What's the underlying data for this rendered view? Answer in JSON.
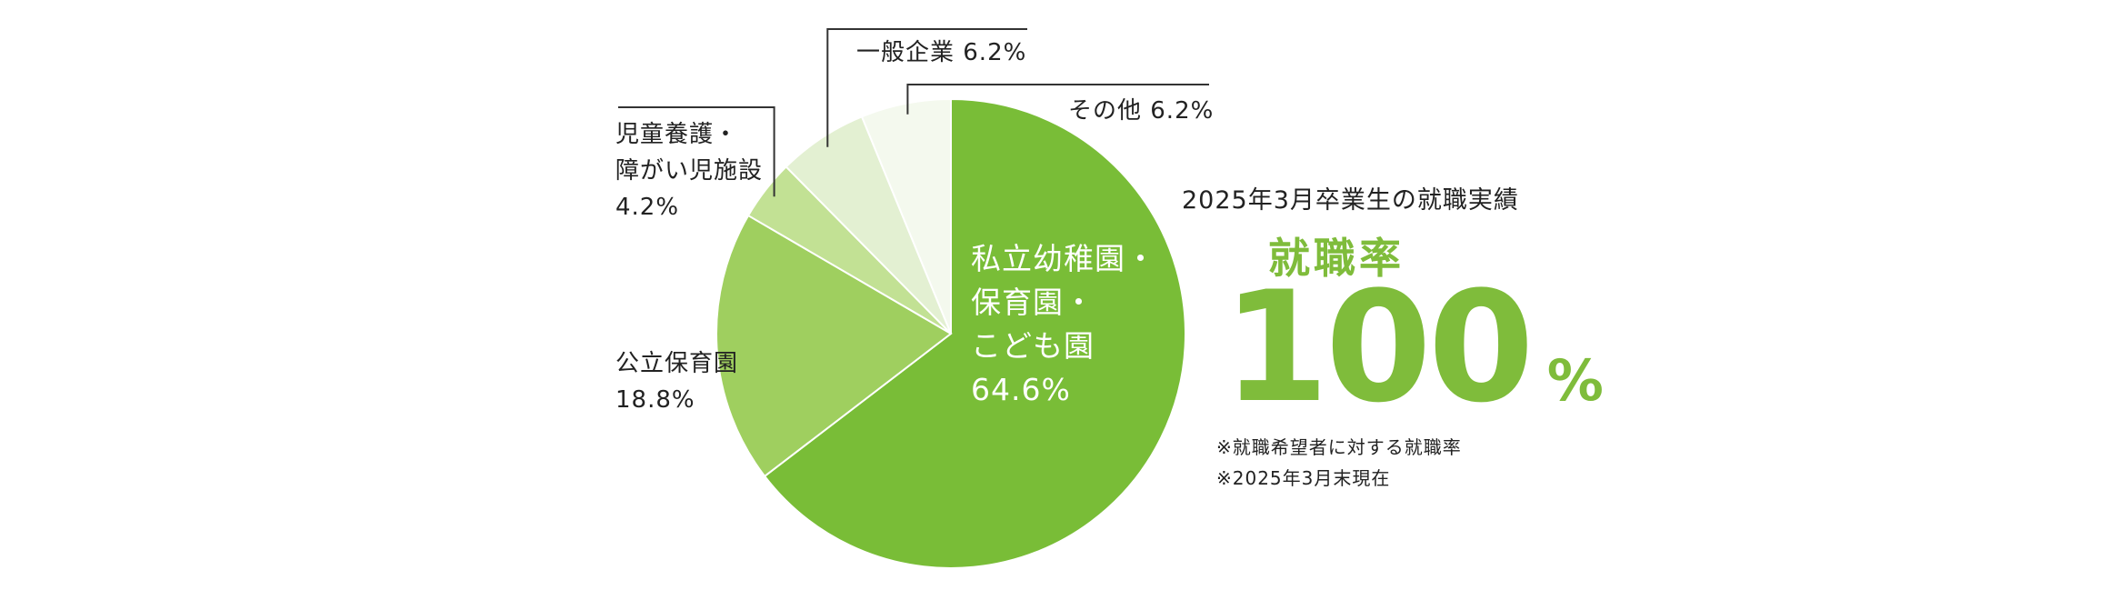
{
  "chart_data": {
    "type": "pie",
    "slices": [
      {
        "label": "私立幼稚園・保育園・こども園",
        "value": 64.6,
        "color": "#79bd37",
        "label_lines": [
          "私立幼稚園・",
          "保育園・",
          "こども園",
          "64.6%"
        ]
      },
      {
        "label": "公立保育園",
        "value": 18.8,
        "color": "#9fcf5f",
        "label_lines": [
          "公立保育園",
          "18.8%"
        ]
      },
      {
        "label": "児童養護・障がい児施設",
        "value": 4.2,
        "color": "#c2e194",
        "label_lines": [
          "児童養護・",
          "障がい児施設",
          "4.2%"
        ]
      },
      {
        "label": "一般企業",
        "value": 6.2,
        "color": "#e3f0d2",
        "label_lines": [
          "一般企業 6.2%"
        ]
      },
      {
        "label": "その他",
        "value": 6.2,
        "color": "#f4f9ee",
        "label_lines": [
          "その他 6.2%"
        ]
      }
    ]
  },
  "side": {
    "heading": "2025年3月卒業生の就職実績",
    "rate_label": "就職率",
    "rate_value": "100",
    "rate_unit": "%",
    "note1": "※就職希望者に対する就職率",
    "note2": "※2025年3月末現在",
    "accent_color": "#7fbc3b"
  }
}
